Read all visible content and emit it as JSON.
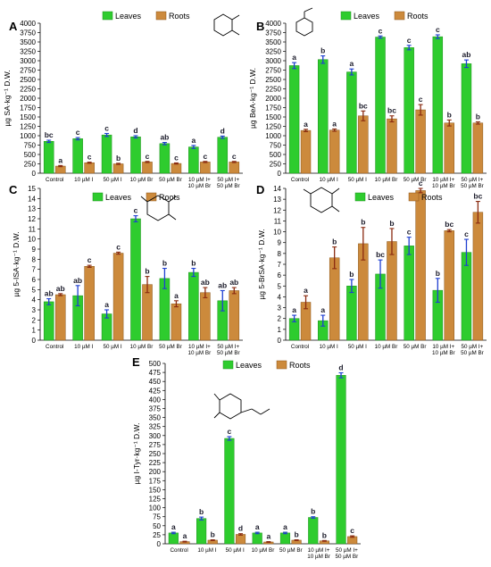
{
  "colors": {
    "leaves": "#2ecc2e",
    "leaves_edge": "#1a8f1a",
    "roots": "#cc8a3c",
    "roots_edge": "#8a5518",
    "err_leaves": "#1f3fd1",
    "err_roots": "#8a2a10",
    "letter": "#1b1b2a"
  },
  "legend": {
    "leaves": "Leaves",
    "roots": "Roots"
  },
  "chart_data": [
    {
      "panel": "A",
      "type": "bar",
      "ylabel": "µg SA·kg⁻¹ D.W.",
      "ylim": [
        0,
        4000
      ],
      "yticks": [
        0,
        250,
        500,
        750,
        1000,
        1250,
        1500,
        1750,
        2000,
        2250,
        2500,
        2750,
        3000,
        3250,
        3500,
        3750,
        4000
      ],
      "categories": [
        "Control",
        "10 µM I",
        "50 µM I",
        "10 µM Br",
        "50 µM Br",
        "10 µM I+ 10 µM Br",
        "50 µM I+ 50 µM Br"
      ],
      "tick_labels": [
        [
          "Control"
        ],
        [
          "10 µM I"
        ],
        [
          "50 µM I"
        ],
        [
          "10 µM Br"
        ],
        [
          "50 µM Br"
        ],
        [
          "10 µM I+",
          "10 µM Br"
        ],
        [
          "50 µM I+",
          "50 µM Br"
        ]
      ],
      "series": [
        {
          "name": "Leaves",
          "values": [
            850,
            920,
            1020,
            970,
            790,
            700,
            960
          ],
          "errors": [
            30,
            30,
            40,
            30,
            30,
            40,
            30
          ],
          "letters": [
            "bc",
            "c",
            "c",
            "d",
            "ab",
            "a",
            "d"
          ]
        },
        {
          "name": "Roots",
          "values": [
            190,
            280,
            250,
            300,
            260,
            300,
            300
          ],
          "errors": [
            15,
            15,
            15,
            15,
            15,
            15,
            15
          ],
          "letters": [
            "a",
            "c",
            "b",
            "c",
            "c",
            "c",
            "c"
          ]
        }
      ],
      "legend": "top-center"
    },
    {
      "panel": "B",
      "type": "bar",
      "ylabel": "µg BeA·kg⁻¹ D.W.",
      "ylim": [
        0,
        4000
      ],
      "yticks": [
        0,
        250,
        500,
        750,
        1000,
        1250,
        1500,
        1750,
        2000,
        2250,
        2500,
        2750,
        3000,
        3250,
        3500,
        3750,
        4000
      ],
      "categories": [
        "Control",
        "10 µM I",
        "50 µM I",
        "10 µM Br",
        "50 µM Br",
        "10 µM I+ 10 µM Br",
        "50 µM I+ 50 µM Br"
      ],
      "tick_labels": [
        [
          "Control"
        ],
        [
          "10 µM I"
        ],
        [
          "50 µM I"
        ],
        [
          "10 µM Br"
        ],
        [
          "50 µM Br"
        ],
        [
          "10 µM I+",
          "10 µM Br"
        ],
        [
          "50 µM I+",
          "50 µM Br"
        ]
      ],
      "series": [
        {
          "name": "Leaves",
          "values": [
            2870,
            3030,
            2700,
            3630,
            3350,
            3640,
            2920
          ],
          "errors": [
            80,
            100,
            80,
            30,
            60,
            50,
            100
          ],
          "letters": [
            "a",
            "b",
            "a",
            "c",
            "c",
            "c",
            "ab"
          ]
        },
        {
          "name": "Roots",
          "values": [
            1140,
            1150,
            1530,
            1450,
            1690,
            1340,
            1340
          ],
          "errors": [
            30,
            30,
            130,
            80,
            140,
            80,
            30
          ],
          "letters": [
            "a",
            "a",
            "bc",
            "bc",
            "c",
            "b",
            "b"
          ]
        }
      ],
      "legend": "top-center"
    },
    {
      "panel": "C",
      "type": "bar",
      "ylabel": "µg 5-ISA·kg⁻¹ D.W.",
      "ylim": [
        0,
        15
      ],
      "yticks": [
        0,
        1,
        2,
        3,
        4,
        5,
        6,
        7,
        8,
        9,
        10,
        11,
        12,
        13,
        14,
        15
      ],
      "categories": [
        "Control",
        "10 µM I",
        "50 µM I",
        "10 µM Br",
        "50 µM Br",
        "10 µM I+ 10 µM Br",
        "50 µM I+ 50 µM Br"
      ],
      "tick_labels": [
        [
          "Control"
        ],
        [
          "10 µM I"
        ],
        [
          "50 µM I"
        ],
        [
          "10 µM Br"
        ],
        [
          "50 µM Br"
        ],
        [
          "10 µM I+",
          "10 µM Br"
        ],
        [
          "50 µM I+",
          "50 µM Br"
        ]
      ],
      "series": [
        {
          "name": "Leaves",
          "values": [
            3.8,
            4.4,
            2.6,
            12.0,
            6.1,
            6.7,
            3.9
          ],
          "errors": [
            0.3,
            1.0,
            0.4,
            0.3,
            1.0,
            0.4,
            1.0
          ],
          "letters": [
            "ab",
            "ab",
            "a",
            "c",
            "b",
            "b",
            "ab"
          ]
        },
        {
          "name": "Roots",
          "values": [
            4.5,
            7.3,
            8.6,
            5.5,
            3.6,
            4.7,
            4.9
          ],
          "errors": [
            0.1,
            0.1,
            0.1,
            0.8,
            0.3,
            0.5,
            0.3
          ],
          "letters": [
            "ab",
            "c",
            "c",
            "b",
            "a",
            "ab",
            "ab"
          ]
        }
      ],
      "legend": "top-center"
    },
    {
      "panel": "D",
      "type": "bar",
      "ylabel": "µg 5-BrSA·kg⁻¹ D.W.",
      "ylim": [
        0,
        14
      ],
      "yticks": [
        0,
        1,
        2,
        3,
        4,
        5,
        6,
        7,
        8,
        9,
        10,
        11,
        12,
        13,
        14
      ],
      "categories": [
        "Control",
        "10 µM I",
        "50 µM I",
        "10 µM Br",
        "50 µM Br",
        "10 µM I+ 10 µM Br",
        "50 µM I+ 50 µM Br"
      ],
      "tick_labels": [
        [
          "Control"
        ],
        [
          "10 µM I"
        ],
        [
          "50 µM I"
        ],
        [
          "10 µM Br"
        ],
        [
          "50 µM Br"
        ],
        [
          "10 µM I+",
          "10 µM Br"
        ],
        [
          "50 µM I+",
          "50 µM Br"
        ]
      ],
      "series": [
        {
          "name": "Leaves",
          "values": [
            2.0,
            1.8,
            5.0,
            6.1,
            8.7,
            4.6,
            8.1
          ],
          "errors": [
            0.3,
            0.5,
            0.6,
            1.3,
            0.8,
            1.1,
            1.2
          ],
          "letters": [
            "a",
            "a",
            "b",
            "bc",
            "c",
            "b",
            "c"
          ]
        },
        {
          "name": "Roots",
          "values": [
            3.5,
            7.6,
            8.9,
            9.1,
            13.8,
            10.1,
            11.8
          ],
          "errors": [
            0.6,
            1.0,
            1.5,
            1.2,
            0.2,
            0.1,
            1.0
          ],
          "letters": [
            "a",
            "b",
            "b",
            "b",
            "c",
            "bc",
            "bc"
          ]
        }
      ],
      "legend": "top-center"
    },
    {
      "panel": "E",
      "type": "bar",
      "ylabel": "µg I-Tyr·kg⁻¹ D.W.",
      "ylim": [
        0,
        500
      ],
      "yticks": [
        0,
        25,
        50,
        75,
        100,
        125,
        150,
        175,
        200,
        225,
        250,
        275,
        300,
        325,
        350,
        375,
        400,
        425,
        450,
        475,
        500
      ],
      "categories": [
        "Control",
        "10 µM I",
        "50 µM I",
        "10 µM Br",
        "50 µM Br",
        "10 µM I+ 10 µM Br",
        "50 µM I+ 50 µM Br"
      ],
      "tick_labels": [
        [
          "Control"
        ],
        [
          "10 µM I"
        ],
        [
          "50 µM I"
        ],
        [
          "10 µM Br"
        ],
        [
          "50 µM Br"
        ],
        [
          "10 µM I+",
          "10 µM Br"
        ],
        [
          "50 µM I+",
          "50 µM Br"
        ]
      ],
      "series": [
        {
          "name": "Leaves",
          "values": [
            30,
            70,
            292,
            30,
            30,
            73,
            467
          ],
          "errors": [
            2,
            4,
            5,
            2,
            2,
            2,
            7
          ],
          "letters": [
            "a",
            "b",
            "c",
            "a",
            "a",
            "b",
            "d"
          ]
        },
        {
          "name": "Roots",
          "values": [
            6,
            10,
            26,
            5,
            10,
            8,
            20
          ],
          "errors": [
            1,
            1,
            2,
            1,
            1,
            1,
            2
          ],
          "letters": [
            "a",
            "b",
            "d",
            "a",
            "b",
            "b",
            "c"
          ]
        }
      ],
      "legend": "top-center"
    }
  ]
}
